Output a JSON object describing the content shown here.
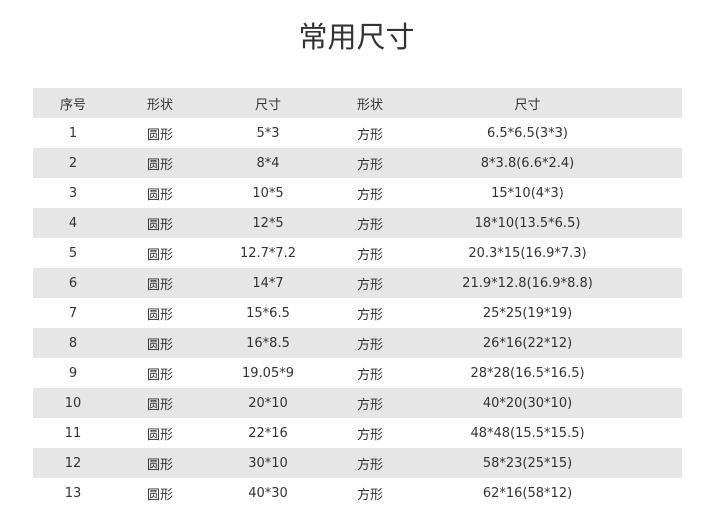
{
  "title": "常用尺寸",
  "table": {
    "headers": [
      "序号",
      "形状",
      "尺寸",
      "形状",
      "尺寸"
    ],
    "rows": [
      [
        "1",
        "圆形",
        "5*3",
        "方形",
        "6.5*6.5(3*3)"
      ],
      [
        "2",
        "圆形",
        "8*4",
        "方形",
        "8*3.8(6.6*2.4)"
      ],
      [
        "3",
        "圆形",
        "10*5",
        "方形",
        "15*10(4*3)"
      ],
      [
        "4",
        "圆形",
        "12*5",
        "方形",
        "18*10(13.5*6.5)"
      ],
      [
        "5",
        "圆形",
        "12.7*7.2",
        "方形",
        "20.3*15(16.9*7.3)"
      ],
      [
        "6",
        "圆形",
        "14*7",
        "方形",
        "21.9*12.8(16.9*8.8)"
      ],
      [
        "7",
        "圆形",
        "15*6.5",
        "方形",
        "25*25(19*19)"
      ],
      [
        "8",
        "圆形",
        "16*8.5",
        "方形",
        "26*16(22*12)"
      ],
      [
        "9",
        "圆形",
        "19.05*9",
        "方形",
        "28*28(16.5*16.5)"
      ],
      [
        "10",
        "圆形",
        "20*10",
        "方形",
        "40*20(30*10)"
      ],
      [
        "11",
        "圆形",
        "22*16",
        "方形",
        "48*48(15.5*15.5)"
      ],
      [
        "12",
        "圆形",
        "30*10",
        "方形",
        "58*23(25*15)"
      ],
      [
        "13",
        "圆形",
        "40*30",
        "方形",
        "62*16(58*12)"
      ]
    ]
  },
  "colors": {
    "stripe": "#e6e6e6",
    "text": "#333333"
  }
}
